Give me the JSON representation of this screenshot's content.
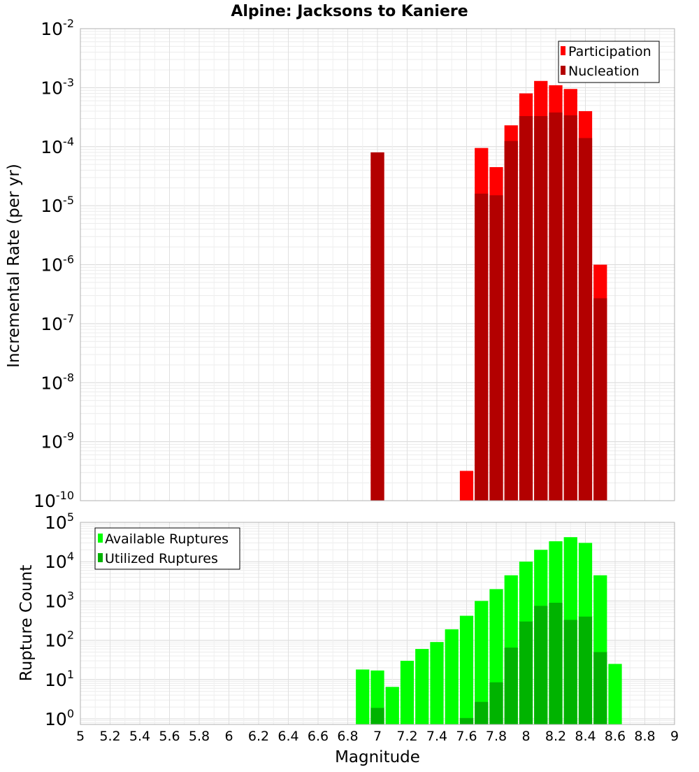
{
  "title": "Alpine: Jacksons to Kaniere",
  "xlabel": "Magnitude",
  "x_tick_labels": [
    "5",
    "5.2",
    "5.4",
    "5.6",
    "5.8",
    "6",
    "6.2",
    "6.4",
    "6.6",
    "6.8",
    "7",
    "7.2",
    "7.4",
    "7.6",
    "7.8",
    "8",
    "8.2",
    "8.4",
    "8.6",
    "8.8",
    "9"
  ],
  "colors": {
    "participation": "#ff0000",
    "nucleation": "#b30000",
    "available": "#00ff00",
    "utilized": "#00b300"
  },
  "chart_data": [
    {
      "type": "bar",
      "name": "rate",
      "ylabel": "Incremental Rate (per yr)",
      "y_scale": "log",
      "ylim": [
        1e-10,
        0.01
      ],
      "xlim": [
        5,
        9
      ],
      "bin_width": 0.1,
      "y_tick_labels": [
        {
          "base": "10",
          "exp": "-10"
        },
        {
          "base": "10",
          "exp": "-9"
        },
        {
          "base": "10",
          "exp": "-8"
        },
        {
          "base": "10",
          "exp": "-7"
        },
        {
          "base": "10",
          "exp": "-6"
        },
        {
          "base": "10",
          "exp": "-5"
        },
        {
          "base": "10",
          "exp": "-4"
        },
        {
          "base": "10",
          "exp": "-3"
        },
        {
          "base": "10",
          "exp": "-2"
        }
      ],
      "legend": {
        "position": "top-right",
        "entries": [
          "Participation",
          "Nucleation"
        ]
      },
      "x": [
        7.0,
        7.6,
        7.7,
        7.8,
        7.9,
        8.0,
        8.1,
        8.2,
        8.3,
        8.4,
        8.5
      ],
      "series": [
        {
          "name": "Participation",
          "values": [
            8e-05,
            3.2e-10,
            9.5e-05,
            4.5e-05,
            0.00023,
            0.0008,
            0.0013,
            0.0011,
            0.00095,
            0.0004,
            1e-06
          ]
        },
        {
          "name": "Nucleation",
          "values": [
            8e-05,
            null,
            1.6e-05,
            1.5e-05,
            0.000125,
            0.00033,
            0.00033,
            0.00038,
            0.00034,
            0.00014,
            2.7e-07
          ]
        }
      ]
    },
    {
      "type": "bar",
      "name": "count",
      "ylabel": "Rupture Count",
      "y_scale": "log",
      "ylim": [
        0.72,
        100000
      ],
      "xlim": [
        5,
        9
      ],
      "bin_width": 0.1,
      "y_tick_labels": [
        {
          "base": "10",
          "exp": "0"
        },
        {
          "base": "10",
          "exp": "1"
        },
        {
          "base": "10",
          "exp": "2"
        },
        {
          "base": "10",
          "exp": "3"
        },
        {
          "base": "10",
          "exp": "4"
        },
        {
          "base": "10",
          "exp": "5"
        }
      ],
      "legend": {
        "position": "top-left",
        "entries": [
          "Available Ruptures",
          "Utilized Ruptures"
        ]
      },
      "x": [
        6.9,
        7.0,
        7.1,
        7.2,
        7.3,
        7.4,
        7.5,
        7.6,
        7.7,
        7.8,
        7.9,
        8.0,
        8.1,
        8.2,
        8.3,
        8.4,
        8.5,
        8.6
      ],
      "series": [
        {
          "name": "Available Ruptures",
          "values": [
            18,
            17,
            6.5,
            30,
            60,
            90,
            190,
            420,
            1000,
            2000,
            4500,
            10000,
            20000,
            33000,
            42000,
            30000,
            4500,
            25
          ]
        },
        {
          "name": "Utilized Ruptures",
          "values": [
            null,
            1.9,
            null,
            null,
            null,
            null,
            null,
            1.05,
            2.7,
            8.5,
            65,
            300,
            750,
            900,
            330,
            400,
            50,
            null
          ]
        }
      ]
    }
  ]
}
